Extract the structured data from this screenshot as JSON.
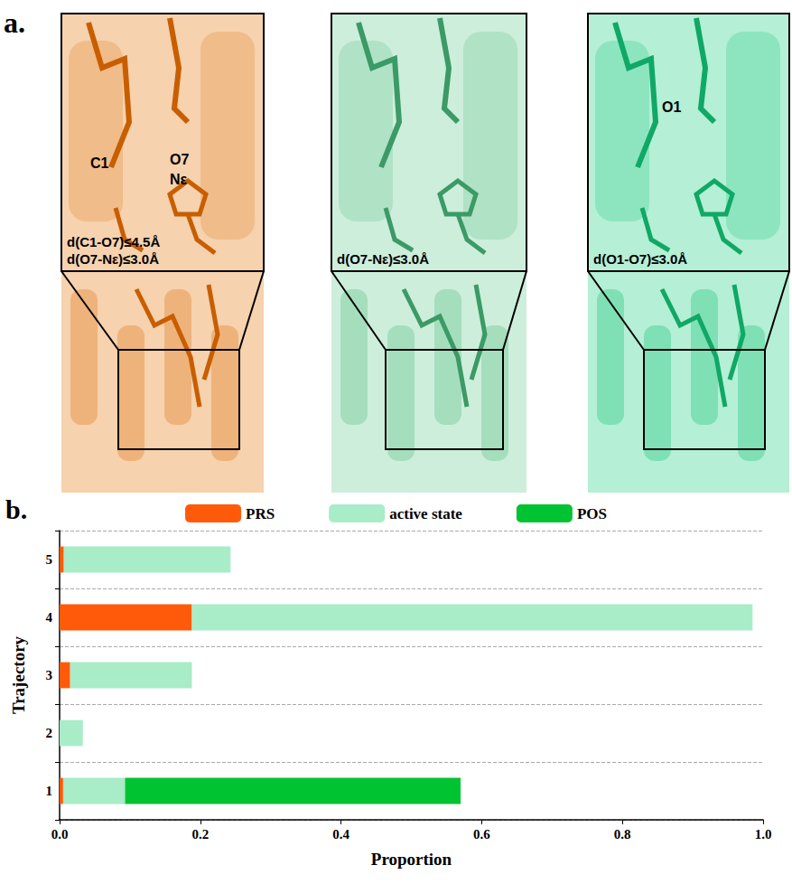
{
  "panel_a": {
    "label": "a.",
    "panels": [
      {
        "labels": [
          "C1",
          "O7",
          "Nε"
        ],
        "conditions": [
          "d(C1-O7)≤4.5Å",
          "d(O7-Nε)≤3.0Å"
        ]
      },
      {
        "labels": [],
        "conditions": [
          "d(O7-Nε)≤3.0Å"
        ]
      },
      {
        "labels": [
          "O1"
        ],
        "conditions": [
          "d(O1-O7)≤3.0Å"
        ]
      }
    ]
  },
  "panel_b": {
    "label": "b."
  },
  "chart_data": {
    "type": "bar",
    "orientation": "horizontal",
    "stacked": true,
    "categories": [
      "1",
      "2",
      "3",
      "4",
      "5"
    ],
    "series": [
      {
        "name": "PRS",
        "color": "#ff5a0a",
        "values": [
          0.005,
          0,
          0.015,
          0.188,
          0.006
        ]
      },
      {
        "name": "active state",
        "color": "#a8ecc8",
        "values": [
          0.088,
          0.033,
          0.173,
          0.797,
          0.237
        ]
      },
      {
        "name": "POS",
        "color": "#00c332",
        "values": [
          0.477,
          0,
          0,
          0,
          0
        ]
      }
    ],
    "x_label": "Proportion",
    "y_label": "Trajectory",
    "xlim": [
      0,
      1
    ],
    "xticks": [
      {
        "value": 0,
        "label": "0.0"
      },
      0.2,
      0.4,
      0.6,
      0.8,
      {
        "value": 1,
        "label": "1.0"
      }
    ],
    "grid": true,
    "legend": "top"
  }
}
